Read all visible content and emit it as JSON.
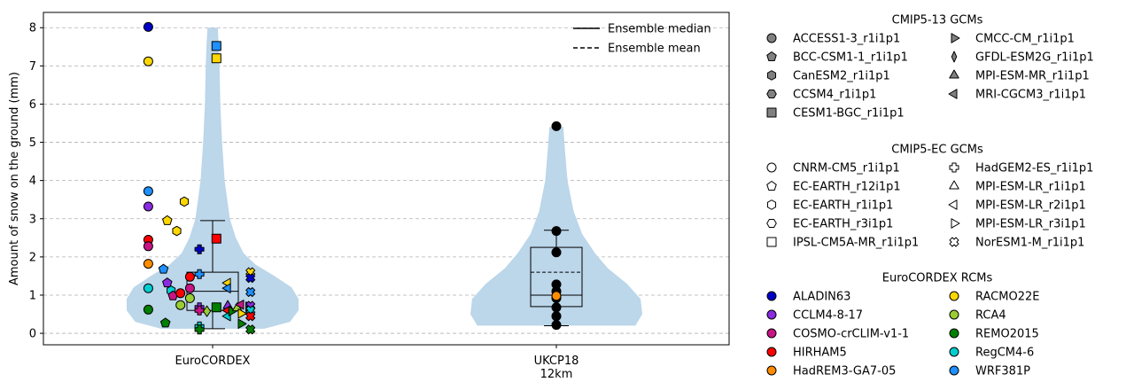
{
  "chart_data": {
    "type": "violin-scatter",
    "ylabel": "Amount of snow on the ground (mm)",
    "ylim": [
      -0.3,
      8.4
    ],
    "yticks": [
      0,
      1,
      2,
      3,
      4,
      5,
      6,
      7,
      8
    ],
    "grid": "y-dashed",
    "categories": [
      "EuroCORDEX",
      "UKCP18\n12km"
    ],
    "colors": {
      "violin": "#bcd6ea",
      "grid": "#b0b0b0"
    },
    "violins": [
      {
        "category": "EuroCORDEX",
        "profile": [
          [
            0.12,
            0.6
          ],
          [
            0.3,
            0.9
          ],
          [
            0.6,
            1.0
          ],
          [
            0.9,
            1.0
          ],
          [
            1.2,
            0.92
          ],
          [
            1.5,
            0.72
          ],
          [
            1.8,
            0.5
          ],
          [
            2.1,
            0.36
          ],
          [
            2.5,
            0.27
          ],
          [
            3.0,
            0.2
          ],
          [
            4.0,
            0.14
          ],
          [
            5.0,
            0.11
          ],
          [
            6.0,
            0.09
          ],
          [
            7.0,
            0.08
          ],
          [
            7.6,
            0.07
          ],
          [
            8.0,
            0.06
          ]
        ],
        "box": {
          "q1": 0.6,
          "median": 1.1,
          "q3": 1.6,
          "whisker_low": 0.12,
          "whisker_high": 2.95
        }
      },
      {
        "category": "UKCP18\n12km",
        "profile": [
          [
            0.2,
            0.92
          ],
          [
            0.5,
            1.0
          ],
          [
            0.9,
            0.98
          ],
          [
            1.3,
            0.82
          ],
          [
            1.7,
            0.6
          ],
          [
            2.1,
            0.45
          ],
          [
            2.6,
            0.3
          ],
          [
            3.2,
            0.2
          ],
          [
            4.0,
            0.13
          ],
          [
            4.8,
            0.1
          ],
          [
            5.4,
            0.08
          ]
        ],
        "box": {
          "q1": 0.7,
          "median": 1.0,
          "q3": 2.25,
          "mean": 1.6,
          "whisker_low": 0.2,
          "whisker_high": 2.7
        },
        "points": [
          5.42,
          2.68,
          2.12,
          1.28,
          1.1,
          0.92,
          0.68,
          0.45,
          0.22
        ]
      }
    ],
    "euro_points": [
      {
        "x": -0.34,
        "y": 8.02,
        "rcm": 0,
        "gcm": "circle"
      },
      {
        "x": -0.34,
        "y": 7.12,
        "rcm": 5,
        "gcm": "circle"
      },
      {
        "x": -0.34,
        "y": 3.72,
        "rcm": 9,
        "gcm": "circle"
      },
      {
        "x": -0.34,
        "y": 3.32,
        "rcm": 1,
        "gcm": "circle"
      },
      {
        "x": -0.34,
        "y": 2.45,
        "rcm": 3,
        "gcm": "circle"
      },
      {
        "x": -0.34,
        "y": 2.28,
        "rcm": 2,
        "gcm": "circle"
      },
      {
        "x": -0.34,
        "y": 1.82,
        "rcm": 4,
        "gcm": "circle"
      },
      {
        "x": -0.34,
        "y": 1.18,
        "rcm": 8,
        "gcm": "circle"
      },
      {
        "x": -0.34,
        "y": 0.62,
        "rcm": 7,
        "gcm": "circle"
      },
      {
        "x": -0.24,
        "y": 2.95,
        "rcm": 5,
        "gcm": "pentagon"
      },
      {
        "x": -0.19,
        "y": 2.68,
        "rcm": 5,
        "gcm": "hexagon"
      },
      {
        "x": -0.26,
        "y": 1.68,
        "rcm": 9,
        "gcm": "pentagon"
      },
      {
        "x": -0.24,
        "y": 1.32,
        "rcm": 1,
        "gcm": "pentagon"
      },
      {
        "x": -0.22,
        "y": 1.12,
        "rcm": 8,
        "gcm": "hexagon"
      },
      {
        "x": -0.21,
        "y": 0.98,
        "rcm": 2,
        "gcm": "pentagon"
      },
      {
        "x": -0.17,
        "y": 1.05,
        "rcm": 3,
        "gcm": "circle"
      },
      {
        "x": -0.17,
        "y": 0.74,
        "rcm": 6,
        "gcm": "circle"
      },
      {
        "x": -0.25,
        "y": 0.27,
        "rcm": 7,
        "gcm": "pentagon"
      },
      {
        "x": -0.15,
        "y": 3.45,
        "rcm": 5,
        "gcm": "hexagon"
      },
      {
        "x": -0.12,
        "y": 1.48,
        "rcm": 3,
        "gcm": "circle"
      },
      {
        "x": -0.12,
        "y": 1.18,
        "rcm": 2,
        "gcm": "circle"
      },
      {
        "x": -0.12,
        "y": 0.92,
        "rcm": 6,
        "gcm": "circle"
      },
      {
        "x": -0.07,
        "y": 2.2,
        "rcm": 0,
        "gcm": "plus"
      },
      {
        "x": -0.07,
        "y": 1.55,
        "rcm": 9,
        "gcm": "plus"
      },
      {
        "x": -0.07,
        "y": 0.68,
        "rcm": 1,
        "gcm": "plus"
      },
      {
        "x": -0.07,
        "y": 0.6,
        "rcm": 2,
        "gcm": "plus"
      },
      {
        "x": -0.07,
        "y": 0.18,
        "rcm": 8,
        "gcm": "plus"
      },
      {
        "x": -0.07,
        "y": 0.1,
        "rcm": 7,
        "gcm": "plus"
      },
      {
        "x": -0.03,
        "y": 0.58,
        "rcm": 6,
        "gcm": "diamond"
      },
      {
        "x": 0.02,
        "y": 7.52,
        "rcm": 9,
        "gcm": "square"
      },
      {
        "x": 0.02,
        "y": 7.2,
        "rcm": 5,
        "gcm": "square"
      },
      {
        "x": 0.02,
        "y": 2.48,
        "rcm": 3,
        "gcm": "square"
      },
      {
        "x": 0.02,
        "y": 0.68,
        "rcm": 7,
        "gcm": "square"
      },
      {
        "x": 0.08,
        "y": 1.32,
        "rcm": 5,
        "gcm": "tri-left"
      },
      {
        "x": 0.08,
        "y": 1.18,
        "rcm": 9,
        "gcm": "tri-left"
      },
      {
        "x": 0.08,
        "y": 0.72,
        "rcm": 1,
        "gcm": "tri-up"
      },
      {
        "x": 0.08,
        "y": 0.6,
        "rcm": 3,
        "gcm": "tri-left"
      },
      {
        "x": 0.08,
        "y": 0.45,
        "rcm": 8,
        "gcm": "tri-left"
      },
      {
        "x": 0.1,
        "y": 0.58,
        "rcm": 7,
        "gcm": "tri-right"
      },
      {
        "x": 0.13,
        "y": 0.66,
        "rcm": 6,
        "gcm": "tri-up"
      },
      {
        "x": 0.15,
        "y": 0.52,
        "rcm": 5,
        "gcm": "tri-right"
      },
      {
        "x": 0.15,
        "y": 0.75,
        "rcm": 2,
        "gcm": "tri-left"
      },
      {
        "x": 0.15,
        "y": 0.25,
        "rcm": 7,
        "gcm": "tri-right"
      },
      {
        "x": 0.19,
        "y": 0.7,
        "rcm": 1,
        "gcm": "tri-right"
      },
      {
        "x": 0.2,
        "y": 1.6,
        "rcm": 5,
        "gcm": "x"
      },
      {
        "x": 0.2,
        "y": 1.45,
        "rcm": 0,
        "gcm": "x"
      },
      {
        "x": 0.2,
        "y": 1.08,
        "rcm": 9,
        "gcm": "x"
      },
      {
        "x": 0.2,
        "y": 0.72,
        "rcm": 1,
        "gcm": "x"
      },
      {
        "x": 0.2,
        "y": 0.6,
        "rcm": 8,
        "gcm": "x"
      },
      {
        "x": 0.2,
        "y": 0.45,
        "rcm": 3,
        "gcm": "x"
      },
      {
        "x": 0.2,
        "y": 0.1,
        "rcm": 7,
        "gcm": "x"
      }
    ],
    "line_legend": [
      {
        "label": "Ensemble median",
        "style": "solid"
      },
      {
        "label": "Ensemble mean",
        "style": "dashed"
      }
    ],
    "legends": [
      {
        "title": "CMIP5-13 GCMs",
        "fill": "#808080",
        "columns": [
          [
            {
              "label": "ACCESS1-3_r1i1p1",
              "marker": "circle"
            },
            {
              "label": "BCC-CSM1-1_r1i1p1",
              "marker": "pentagon"
            },
            {
              "label": "CanESM2_r1i1p1",
              "marker": "hexagon"
            },
            {
              "label": "CCSM4_r1i1p1",
              "marker": "hexagon2"
            },
            {
              "label": "CESM1-BGC_r1i1p1",
              "marker": "square"
            }
          ],
          [
            {
              "label": "CMCC-CM_r1i1p1",
              "marker": "tri-right"
            },
            {
              "label": "GFDL-ESM2G_r1i1p1",
              "marker": "thin-diamond"
            },
            {
              "label": "MPI-ESM-MR_r1i1p1",
              "marker": "tri-up"
            },
            {
              "label": "MRI-CGCM3_r1i1p1",
              "marker": "tri-left"
            }
          ]
        ]
      },
      {
        "title": "CMIP5-EC GCMs",
        "fill": "#ffffff",
        "columns": [
          [
            {
              "label": "CNRM-CM5_r1i1p1",
              "marker": "circle"
            },
            {
              "label": "EC-EARTH_r12i1p1",
              "marker": "pentagon"
            },
            {
              "label": "EC-EARTH_r1i1p1",
              "marker": "hexagon"
            },
            {
              "label": "EC-EARTH_r3i1p1",
              "marker": "hexagon2"
            },
            {
              "label": "IPSL-CM5A-MR_r1i1p1",
              "marker": "square"
            }
          ],
          [
            {
              "label": "HadGEM2-ES_r1i1p1",
              "marker": "plus"
            },
            {
              "label": "MPI-ESM-LR_r1i1p1",
              "marker": "tri-up"
            },
            {
              "label": "MPI-ESM-LR_r2i1p1",
              "marker": "tri-left"
            },
            {
              "label": "MPI-ESM-LR_r3i1p1",
              "marker": "tri-right"
            },
            {
              "label": "NorESM1-M_r1i1p1",
              "marker": "x"
            }
          ]
        ]
      },
      {
        "title": "EuroCORDEX RCMs",
        "columns": [
          [
            {
              "label": "ALADIN63",
              "marker": "circle",
              "color": "#0000c8"
            },
            {
              "label": "CCLM4-8-17",
              "marker": "circle",
              "color": "#8a2be2"
            },
            {
              "label": "COSMO-crCLIM-v1-1",
              "marker": "circle",
              "color": "#c71585"
            },
            {
              "label": "HIRHAM5",
              "marker": "circle",
              "color": "#ff0000"
            },
            {
              "label": "HadREM3-GA7-05",
              "marker": "circle",
              "color": "#ff8c00"
            }
          ],
          [
            {
              "label": "RACMO22E",
              "marker": "circle",
              "color": "#ffd700"
            },
            {
              "label": "RCA4",
              "marker": "circle",
              "color": "#9acd32"
            },
            {
              "label": "REMO2015",
              "marker": "circle",
              "color": "#008000"
            },
            {
              "label": "RegCM4-6",
              "marker": "circle",
              "color": "#00ced1"
            },
            {
              "label": "WRF381P",
              "marker": "circle",
              "color": "#1e90ff"
            }
          ]
        ]
      }
    ]
  }
}
